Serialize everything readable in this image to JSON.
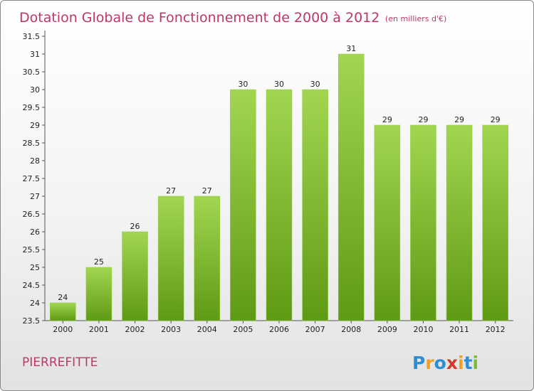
{
  "chart_data": {
    "type": "bar",
    "title": "Dotation Globale de Fonctionnement de 2000 à 2012",
    "subtitle": "(en milliers d'€)",
    "categories": [
      "2000",
      "2001",
      "2002",
      "2003",
      "2004",
      "2005",
      "2006",
      "2007",
      "2008",
      "2009",
      "2010",
      "2011",
      "2012"
    ],
    "values": [
      24,
      25,
      26,
      27,
      27,
      30,
      30,
      30,
      31,
      29,
      29,
      29,
      29
    ],
    "ylim": [
      23.5,
      31.5
    ],
    "yticks": [
      "23.5",
      "24",
      "24.5",
      "25",
      "25.5",
      "26",
      "26.5",
      "27",
      "27.5",
      "28",
      "28.5",
      "29",
      "29.5",
      "30",
      "30.5",
      "31",
      "31.5"
    ],
    "grid": false,
    "bar_color": "#7cbc34"
  },
  "place_name": "PIERREFITTE",
  "logo": {
    "letters": [
      "P",
      "r",
      "o",
      "x",
      "i",
      "t",
      "i"
    ],
    "colors": [
      "#2a8fd6",
      "#f0a020",
      "#2a8fd6",
      "#d43a2a",
      "#f0a020",
      "#2a8fd6",
      "#7cbc34"
    ]
  }
}
